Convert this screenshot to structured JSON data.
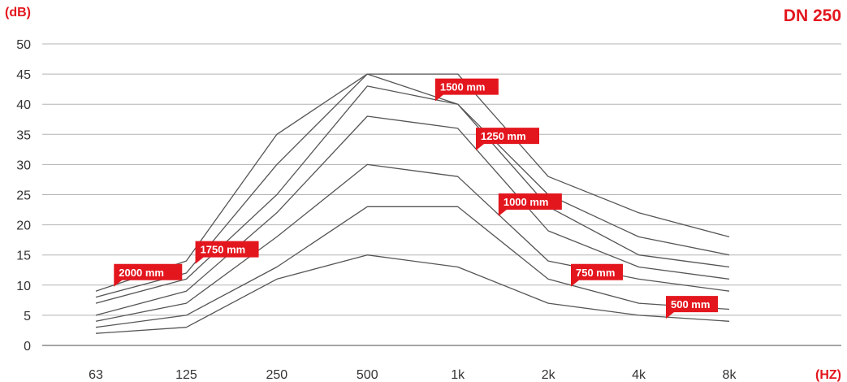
{
  "chart_data": {
    "type": "line",
    "title": "DN 250",
    "ylabel": "(dB)",
    "xlabel": "(HZ)",
    "ylim": [
      0,
      50
    ],
    "yticks": [
      0,
      5,
      10,
      15,
      20,
      25,
      30,
      35,
      40,
      45,
      50
    ],
    "categories": [
      "63",
      "125",
      "250",
      "500",
      "1k",
      "2k",
      "4k",
      "8k"
    ],
    "grid": true,
    "series": [
      {
        "name": "2000 mm",
        "values": [
          9,
          14,
          35,
          45,
          45,
          28,
          22,
          18
        ]
      },
      {
        "name": "1750 mm",
        "values": [
          8,
          12,
          30,
          45,
          40,
          25,
          18,
          15
        ]
      },
      {
        "name": "1500 mm",
        "values": [
          7,
          11,
          25,
          43,
          40,
          23,
          15,
          13
        ]
      },
      {
        "name": "1250 mm",
        "values": [
          5,
          9,
          22,
          38,
          36,
          19,
          13,
          11
        ]
      },
      {
        "name": "1000 mm",
        "values": [
          4,
          7,
          18,
          30,
          28,
          14,
          11,
          9
        ]
      },
      {
        "name": "750 mm",
        "values": [
          3,
          5,
          13,
          23,
          23,
          11,
          7,
          6
        ]
      },
      {
        "name": "500 mm",
        "values": [
          2,
          3,
          11,
          15,
          13,
          7,
          5,
          4
        ]
      }
    ],
    "colors": {
      "line": "#555555",
      "grid": "#b3b3b3",
      "accent": "#e3161e",
      "tag_text": "#ffffff"
    }
  }
}
